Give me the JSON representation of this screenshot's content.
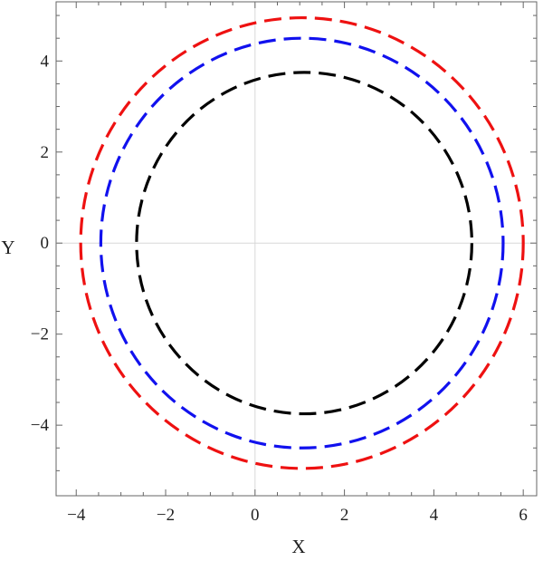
{
  "chart_data": {
    "type": "line",
    "title": "",
    "xlabel": "X",
    "ylabel": "Y",
    "xlim": [
      -4.45,
      6.3
    ],
    "ylim": [
      -5.55,
      5.3
    ],
    "xticks": [
      -4,
      -2,
      0,
      2,
      4,
      6
    ],
    "yticks": [
      -4,
      -2,
      0,
      2,
      4
    ],
    "xtick_labels": [
      "−4",
      "−2",
      "0",
      "2",
      "4",
      "6"
    ],
    "ytick_labels": [
      "−4",
      "−2",
      "0",
      "2",
      "4"
    ],
    "grid": "axes-only",
    "legend": "none",
    "series": [
      {
        "shape": "circle",
        "center": [
          1.05,
          0
        ],
        "radius": 4.95,
        "color": "#ee1111",
        "linestyle": "dashed"
      },
      {
        "shape": "circle",
        "center": [
          1.05,
          0
        ],
        "radius": 4.5,
        "color": "#1111ee",
        "linestyle": "dashed"
      },
      {
        "shape": "circle",
        "center": [
          1.1,
          0
        ],
        "radius": 3.75,
        "color": "#000000",
        "linestyle": "dashed"
      }
    ]
  }
}
